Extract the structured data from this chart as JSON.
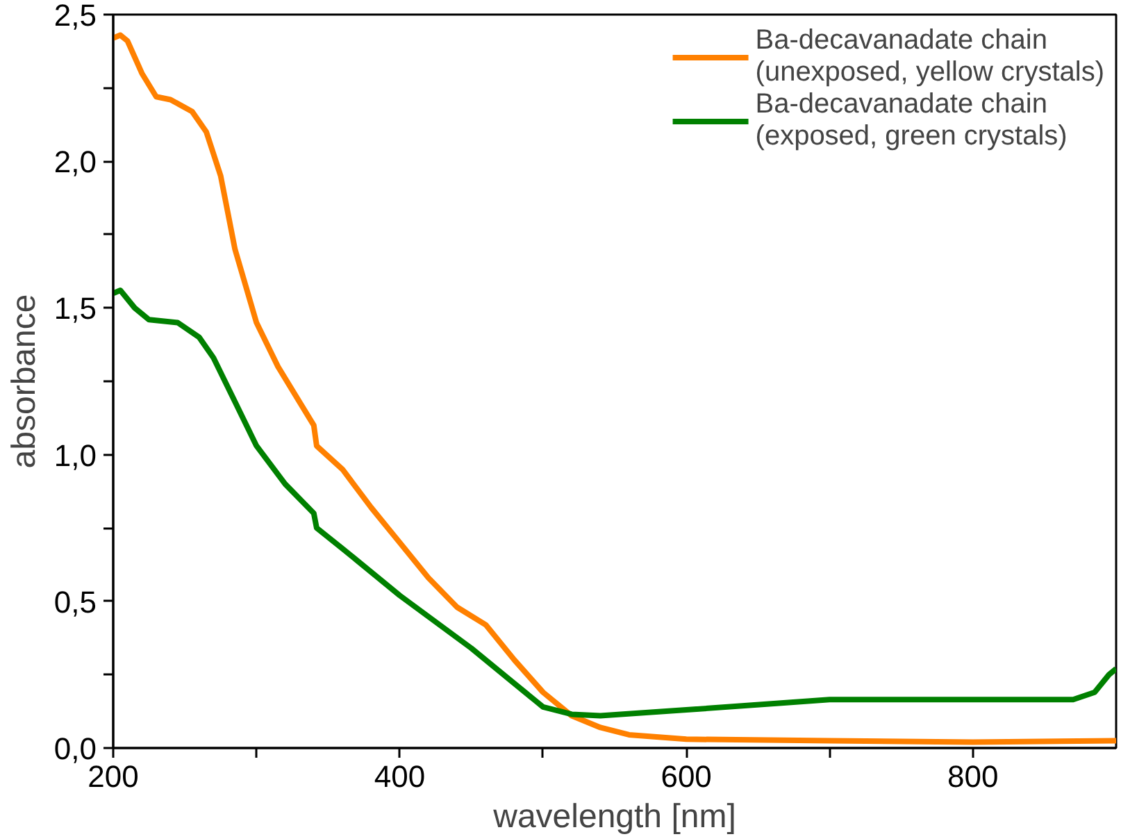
{
  "chart_data": {
    "type": "line",
    "xlabel": "wavelength [nm]",
    "ylabel": "absorbance",
    "xlim": [
      200,
      900
    ],
    "ylim": [
      0,
      2.5
    ],
    "xticks": [
      200,
      {
        "value": 300,
        "label": null
      },
      400,
      {
        "value": 500,
        "label": null
      },
      600,
      {
        "value": 700,
        "label": null
      },
      800
    ],
    "yticks": [
      {
        "value": 0,
        "label": "0,0"
      },
      {
        "value": 0.25,
        "label": null
      },
      {
        "value": 0.5,
        "label": "0,5"
      },
      {
        "value": 0.75,
        "label": null
      },
      {
        "value": 1,
        "label": "1,0"
      },
      {
        "value": 1.25,
        "label": null
      },
      {
        "value": 1.5,
        "label": "1,5"
      },
      {
        "value": 1.75,
        "label": null
      },
      {
        "value": 2,
        "label": "2,0"
      },
      {
        "value": 2.25,
        "label": null
      },
      {
        "value": 2.5,
        "label": "2,5"
      }
    ],
    "grid": false,
    "legend": "top right",
    "line_style": "solid",
    "marker": "none",
    "series": [
      {
        "name": "Ba-decavanadate chain\n(unexposed, yellow crystals)",
        "color": "#ff8000",
        "x": [
          200,
          205,
          210,
          220,
          230,
          240,
          255,
          265,
          275,
          285,
          300,
          315,
          330,
          340,
          342,
          360,
          380,
          400,
          420,
          440,
          460,
          480,
          500,
          520,
          540,
          560,
          600,
          700,
          800,
          900
        ],
        "values": [
          2.42,
          2.43,
          2.41,
          2.3,
          2.22,
          2.21,
          2.17,
          2.1,
          1.95,
          1.7,
          1.45,
          1.3,
          1.18,
          1.1,
          1.03,
          0.95,
          0.82,
          0.7,
          0.58,
          0.48,
          0.42,
          0.3,
          0.19,
          0.11,
          0.07,
          0.045,
          0.03,
          0.025,
          0.02,
          0.025
        ]
      },
      {
        "name": "Ba-decavanadate chain\n(exposed, green crystals)",
        "color": "#008000",
        "x": [
          200,
          205,
          215,
          225,
          245,
          260,
          270,
          285,
          300,
          320,
          340,
          342,
          360,
          400,
          450,
          480,
          500,
          520,
          540,
          600,
          700,
          800,
          870,
          885,
          895,
          900
        ],
        "values": [
          1.55,
          1.56,
          1.5,
          1.46,
          1.45,
          1.4,
          1.33,
          1.18,
          1.03,
          0.9,
          0.8,
          0.75,
          0.68,
          0.52,
          0.34,
          0.22,
          0.14,
          0.115,
          0.11,
          0.13,
          0.165,
          0.165,
          0.165,
          0.19,
          0.25,
          0.27
        ]
      }
    ]
  }
}
